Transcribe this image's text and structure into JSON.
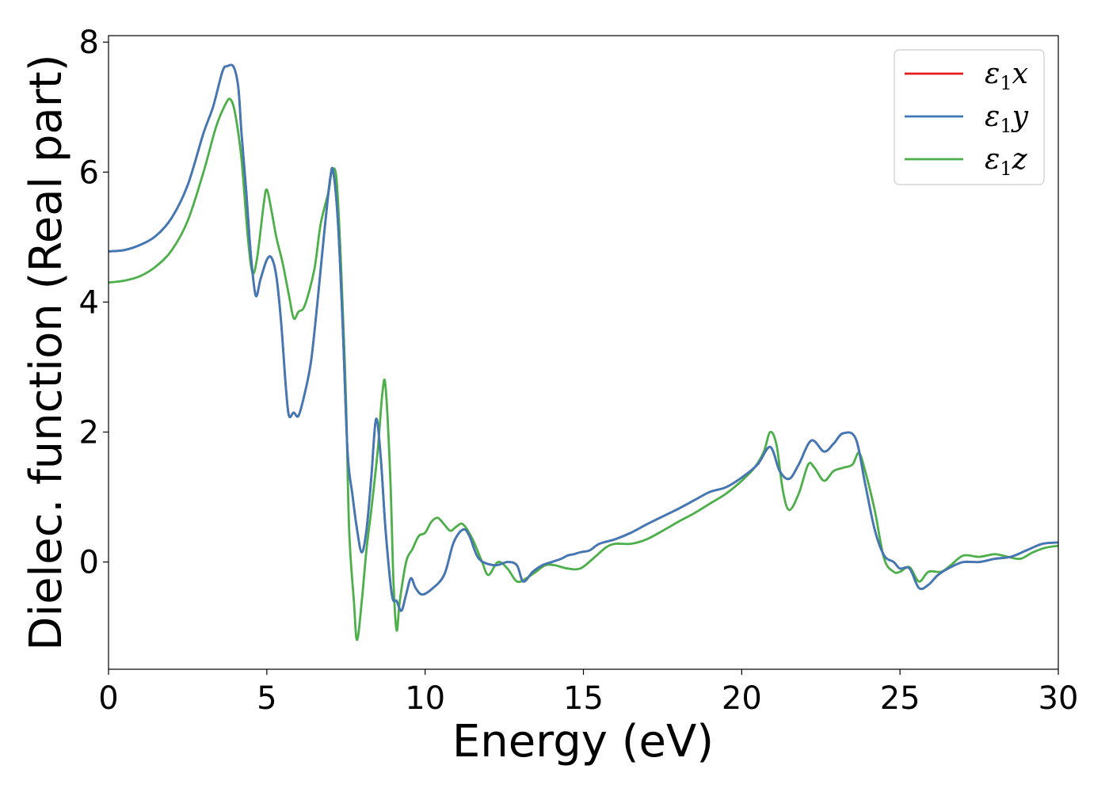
{
  "chart_data": {
    "type": "line",
    "title": "",
    "xlabel": "Energy (eV)",
    "ylabel": "Dielec. function (Real part)",
    "xlim": [
      0,
      30
    ],
    "ylim": [
      -1.65,
      8.1
    ],
    "xticks": [
      0,
      5,
      10,
      15,
      20,
      25,
      30
    ],
    "yticks": [
      0,
      2,
      4,
      6,
      8
    ],
    "xtick_labels": [
      "0",
      "5",
      "10",
      "15",
      "20",
      "25",
      "30"
    ],
    "ytick_labels": [
      "0",
      "2",
      "4",
      "6",
      "8"
    ],
    "grid": false,
    "legend_position": "top-right",
    "series": [
      {
        "name": "ε1x",
        "label_base": "ε",
        "label_sub": "1",
        "label_var": "x",
        "color": "#e41a1c",
        "points": [
          [
            0,
            4.78
          ],
          [
            0.5,
            4.8
          ],
          [
            1,
            4.88
          ],
          [
            1.5,
            5.02
          ],
          [
            2,
            5.3
          ],
          [
            2.5,
            5.8
          ],
          [
            3,
            6.6
          ],
          [
            3.3,
            7.0
          ],
          [
            3.6,
            7.55
          ],
          [
            3.75,
            7.63
          ],
          [
            3.95,
            7.62
          ],
          [
            4.1,
            7.3
          ],
          [
            4.2,
            6.6
          ],
          [
            4.35,
            5.7
          ],
          [
            4.5,
            4.7
          ],
          [
            4.65,
            4.1
          ],
          [
            4.8,
            4.35
          ],
          [
            5.0,
            4.65
          ],
          [
            5.15,
            4.68
          ],
          [
            5.3,
            4.4
          ],
          [
            5.45,
            3.7
          ],
          [
            5.6,
            2.7
          ],
          [
            5.7,
            2.25
          ],
          [
            5.85,
            2.3
          ],
          [
            6.0,
            2.25
          ],
          [
            6.2,
            2.6
          ],
          [
            6.4,
            3.1
          ],
          [
            6.6,
            4.0
          ],
          [
            6.8,
            5.0
          ],
          [
            7.0,
            5.9
          ],
          [
            7.1,
            6.0
          ],
          [
            7.25,
            5.2
          ],
          [
            7.4,
            3.6
          ],
          [
            7.55,
            1.7
          ],
          [
            7.7,
            1.05
          ],
          [
            7.85,
            0.5
          ],
          [
            8.0,
            0.15
          ],
          [
            8.15,
            0.5
          ],
          [
            8.3,
            1.3
          ],
          [
            8.45,
            2.2
          ],
          [
            8.6,
            1.6
          ],
          [
            8.75,
            0.5
          ],
          [
            8.95,
            -0.5
          ],
          [
            9.1,
            -0.6
          ],
          [
            9.25,
            -0.75
          ],
          [
            9.4,
            -0.5
          ],
          [
            9.55,
            -0.25
          ],
          [
            9.7,
            -0.4
          ],
          [
            9.9,
            -0.5
          ],
          [
            10.2,
            -0.42
          ],
          [
            10.6,
            -0.2
          ],
          [
            10.9,
            0.3
          ],
          [
            11.2,
            0.5
          ],
          [
            11.4,
            0.4
          ],
          [
            11.7,
            0.05
          ],
          [
            12.2,
            -0.05
          ],
          [
            12.6,
            0.0
          ],
          [
            12.9,
            -0.05
          ],
          [
            13.1,
            -0.3
          ],
          [
            13.4,
            -0.15
          ],
          [
            13.7,
            -0.05
          ],
          [
            14.0,
            0.0
          ],
          [
            14.3,
            0.05
          ],
          [
            14.5,
            0.1
          ],
          [
            14.7,
            0.12
          ],
          [
            14.9,
            0.15
          ],
          [
            15.2,
            0.18
          ],
          [
            15.5,
            0.28
          ],
          [
            16.0,
            0.35
          ],
          [
            16.5,
            0.45
          ],
          [
            17.0,
            0.58
          ],
          [
            17.5,
            0.7
          ],
          [
            18.0,
            0.82
          ],
          [
            18.5,
            0.95
          ],
          [
            19.0,
            1.08
          ],
          [
            19.5,
            1.15
          ],
          [
            20.0,
            1.3
          ],
          [
            20.5,
            1.5
          ],
          [
            20.9,
            1.77
          ],
          [
            21.2,
            1.4
          ],
          [
            21.5,
            1.28
          ],
          [
            21.8,
            1.5
          ],
          [
            22.2,
            1.87
          ],
          [
            22.6,
            1.7
          ],
          [
            22.9,
            1.82
          ],
          [
            23.2,
            1.98
          ],
          [
            23.6,
            1.9
          ],
          [
            23.9,
            1.2
          ],
          [
            24.2,
            0.5
          ],
          [
            24.5,
            0.1
          ],
          [
            24.8,
            0.0
          ],
          [
            25.0,
            -0.1
          ],
          [
            25.3,
            -0.1
          ],
          [
            25.6,
            -0.4
          ],
          [
            25.9,
            -0.35
          ],
          [
            26.2,
            -0.2
          ],
          [
            26.6,
            -0.08
          ],
          [
            27.0,
            0.0
          ],
          [
            27.5,
            0.0
          ],
          [
            28.0,
            0.05
          ],
          [
            28.5,
            0.08
          ],
          [
            29.0,
            0.18
          ],
          [
            29.5,
            0.28
          ],
          [
            30.0,
            0.3
          ]
        ]
      },
      {
        "name": "ε1y",
        "label_base": "ε",
        "label_sub": "1",
        "label_var": "y",
        "color": "#3e7ab8",
        "points": [
          [
            0,
            4.78
          ],
          [
            0.5,
            4.8
          ],
          [
            1,
            4.88
          ],
          [
            1.5,
            5.02
          ],
          [
            2,
            5.3
          ],
          [
            2.5,
            5.8
          ],
          [
            3,
            6.6
          ],
          [
            3.3,
            7.0
          ],
          [
            3.6,
            7.55
          ],
          [
            3.75,
            7.63
          ],
          [
            3.95,
            7.62
          ],
          [
            4.1,
            7.3
          ],
          [
            4.2,
            6.6
          ],
          [
            4.35,
            5.7
          ],
          [
            4.5,
            4.7
          ],
          [
            4.65,
            4.1
          ],
          [
            4.8,
            4.35
          ],
          [
            5.0,
            4.65
          ],
          [
            5.15,
            4.68
          ],
          [
            5.3,
            4.4
          ],
          [
            5.45,
            3.7
          ],
          [
            5.6,
            2.7
          ],
          [
            5.7,
            2.25
          ],
          [
            5.85,
            2.3
          ],
          [
            6.0,
            2.25
          ],
          [
            6.2,
            2.6
          ],
          [
            6.4,
            3.1
          ],
          [
            6.6,
            4.0
          ],
          [
            6.8,
            5.0
          ],
          [
            7.0,
            5.9
          ],
          [
            7.1,
            6.0
          ],
          [
            7.25,
            5.2
          ],
          [
            7.4,
            3.6
          ],
          [
            7.55,
            1.7
          ],
          [
            7.7,
            1.05
          ],
          [
            7.85,
            0.5
          ],
          [
            8.0,
            0.15
          ],
          [
            8.15,
            0.5
          ],
          [
            8.3,
            1.3
          ],
          [
            8.45,
            2.2
          ],
          [
            8.6,
            1.6
          ],
          [
            8.75,
            0.5
          ],
          [
            8.95,
            -0.5
          ],
          [
            9.1,
            -0.6
          ],
          [
            9.25,
            -0.75
          ],
          [
            9.4,
            -0.5
          ],
          [
            9.55,
            -0.25
          ],
          [
            9.7,
            -0.4
          ],
          [
            9.9,
            -0.5
          ],
          [
            10.2,
            -0.42
          ],
          [
            10.6,
            -0.2
          ],
          [
            10.9,
            0.3
          ],
          [
            11.2,
            0.5
          ],
          [
            11.4,
            0.4
          ],
          [
            11.7,
            0.05
          ],
          [
            12.2,
            -0.05
          ],
          [
            12.6,
            0.0
          ],
          [
            12.9,
            -0.05
          ],
          [
            13.1,
            -0.3
          ],
          [
            13.4,
            -0.15
          ],
          [
            13.7,
            -0.05
          ],
          [
            14.0,
            0.0
          ],
          [
            14.3,
            0.05
          ],
          [
            14.5,
            0.1
          ],
          [
            14.7,
            0.12
          ],
          [
            14.9,
            0.15
          ],
          [
            15.2,
            0.18
          ],
          [
            15.5,
            0.28
          ],
          [
            16.0,
            0.35
          ],
          [
            16.5,
            0.45
          ],
          [
            17.0,
            0.58
          ],
          [
            17.5,
            0.7
          ],
          [
            18.0,
            0.82
          ],
          [
            18.5,
            0.95
          ],
          [
            19.0,
            1.08
          ],
          [
            19.5,
            1.15
          ],
          [
            20.0,
            1.3
          ],
          [
            20.5,
            1.5
          ],
          [
            20.9,
            1.77
          ],
          [
            21.2,
            1.4
          ],
          [
            21.5,
            1.28
          ],
          [
            21.8,
            1.5
          ],
          [
            22.2,
            1.87
          ],
          [
            22.6,
            1.7
          ],
          [
            22.9,
            1.82
          ],
          [
            23.2,
            1.98
          ],
          [
            23.6,
            1.9
          ],
          [
            23.9,
            1.2
          ],
          [
            24.2,
            0.5
          ],
          [
            24.5,
            0.1
          ],
          [
            24.8,
            0.0
          ],
          [
            25.0,
            -0.1
          ],
          [
            25.3,
            -0.1
          ],
          [
            25.6,
            -0.4
          ],
          [
            25.9,
            -0.35
          ],
          [
            26.2,
            -0.2
          ],
          [
            26.6,
            -0.08
          ],
          [
            27.0,
            0.0
          ],
          [
            27.5,
            0.0
          ],
          [
            28.0,
            0.05
          ],
          [
            28.5,
            0.08
          ],
          [
            29.0,
            0.18
          ],
          [
            29.5,
            0.28
          ],
          [
            30.0,
            0.3
          ]
        ]
      },
      {
        "name": "ε1z",
        "label_base": "ε",
        "label_sub": "1",
        "label_var": "z",
        "color": "#4daf4a",
        "points": [
          [
            0,
            4.3
          ],
          [
            0.5,
            4.33
          ],
          [
            1,
            4.4
          ],
          [
            1.5,
            4.55
          ],
          [
            2,
            4.8
          ],
          [
            2.5,
            5.25
          ],
          [
            3,
            6.0
          ],
          [
            3.4,
            6.7
          ],
          [
            3.7,
            7.05
          ],
          [
            3.85,
            7.12
          ],
          [
            4.0,
            6.9
          ],
          [
            4.2,
            6.2
          ],
          [
            4.4,
            5.0
          ],
          [
            4.55,
            4.45
          ],
          [
            4.7,
            4.7
          ],
          [
            4.9,
            5.5
          ],
          [
            5.0,
            5.73
          ],
          [
            5.15,
            5.4
          ],
          [
            5.3,
            5.0
          ],
          [
            5.5,
            4.6
          ],
          [
            5.7,
            4.1
          ],
          [
            5.85,
            3.75
          ],
          [
            6.0,
            3.85
          ],
          [
            6.2,
            3.95
          ],
          [
            6.5,
            4.5
          ],
          [
            6.7,
            5.2
          ],
          [
            6.95,
            5.7
          ],
          [
            7.05,
            6.0
          ],
          [
            7.2,
            5.9
          ],
          [
            7.35,
            4.5
          ],
          [
            7.5,
            2.5
          ],
          [
            7.6,
            0.5
          ],
          [
            7.75,
            -0.6
          ],
          [
            7.85,
            -1.2
          ],
          [
            8.0,
            -0.6
          ],
          [
            8.15,
            0.2
          ],
          [
            8.3,
            0.8
          ],
          [
            8.5,
            1.7
          ],
          [
            8.65,
            2.6
          ],
          [
            8.75,
            2.7
          ],
          [
            8.9,
            1.3
          ],
          [
            9.0,
            -0.3
          ],
          [
            9.1,
            -1.05
          ],
          [
            9.2,
            -0.6
          ],
          [
            9.4,
            0.0
          ],
          [
            9.6,
            0.2
          ],
          [
            9.8,
            0.4
          ],
          [
            10.0,
            0.45
          ],
          [
            10.2,
            0.62
          ],
          [
            10.4,
            0.68
          ],
          [
            10.6,
            0.58
          ],
          [
            10.8,
            0.48
          ],
          [
            11.0,
            0.55
          ],
          [
            11.2,
            0.58
          ],
          [
            11.5,
            0.35
          ],
          [
            11.8,
            0.0
          ],
          [
            12.0,
            -0.2
          ],
          [
            12.3,
            0.0
          ],
          [
            12.6,
            -0.1
          ],
          [
            12.9,
            -0.3
          ],
          [
            13.2,
            -0.25
          ],
          [
            13.5,
            -0.15
          ],
          [
            13.8,
            -0.05
          ],
          [
            14.1,
            -0.05
          ],
          [
            14.5,
            -0.1
          ],
          [
            14.9,
            -0.1
          ],
          [
            15.3,
            0.05
          ],
          [
            15.7,
            0.22
          ],
          [
            16.0,
            0.28
          ],
          [
            16.5,
            0.28
          ],
          [
            17.0,
            0.35
          ],
          [
            17.5,
            0.48
          ],
          [
            18.0,
            0.62
          ],
          [
            18.5,
            0.75
          ],
          [
            19.0,
            0.9
          ],
          [
            19.5,
            1.05
          ],
          [
            20.0,
            1.25
          ],
          [
            20.4,
            1.45
          ],
          [
            20.7,
            1.7
          ],
          [
            20.9,
            2.0
          ],
          [
            21.1,
            1.8
          ],
          [
            21.3,
            1.1
          ],
          [
            21.5,
            0.8
          ],
          [
            21.8,
            1.05
          ],
          [
            22.1,
            1.5
          ],
          [
            22.3,
            1.45
          ],
          [
            22.6,
            1.25
          ],
          [
            22.9,
            1.4
          ],
          [
            23.2,
            1.45
          ],
          [
            23.5,
            1.5
          ],
          [
            23.7,
            1.68
          ],
          [
            23.9,
            1.4
          ],
          [
            24.2,
            0.8
          ],
          [
            24.5,
            0.05
          ],
          [
            24.8,
            -0.15
          ],
          [
            25.0,
            -0.15
          ],
          [
            25.3,
            -0.08
          ],
          [
            25.6,
            -0.3
          ],
          [
            25.9,
            -0.15
          ],
          [
            26.3,
            -0.15
          ],
          [
            26.6,
            -0.05
          ],
          [
            27.0,
            0.1
          ],
          [
            27.5,
            0.08
          ],
          [
            28.0,
            0.12
          ],
          [
            28.4,
            0.08
          ],
          [
            28.8,
            0.05
          ],
          [
            29.2,
            0.15
          ],
          [
            29.6,
            0.22
          ],
          [
            30.0,
            0.25
          ]
        ]
      }
    ]
  }
}
